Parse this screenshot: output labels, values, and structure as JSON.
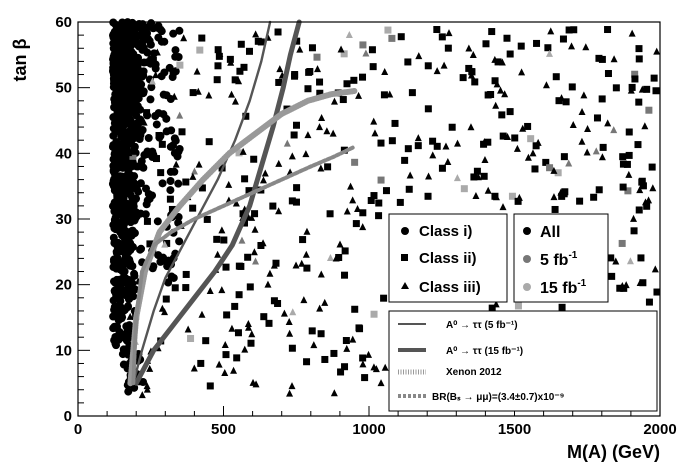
{
  "chart_data": {
    "type": "scatter",
    "title": "",
    "xlabel": "M(A) (GeV)",
    "ylabel": "tan β",
    "xlim": [
      0,
      2000
    ],
    "ylim": [
      0,
      60
    ],
    "xticks": [
      0,
      500,
      1000,
      1500,
      2000
    ],
    "yticks": [
      0,
      10,
      20,
      30,
      40,
      50,
      60
    ],
    "xtick_labels": [
      "0",
      "500",
      "1000",
      "1500",
      "2000"
    ],
    "ytick_labels": [
      "0",
      "10",
      "20",
      "30",
      "40",
      "50",
      "60"
    ],
    "grid": false,
    "legend_class": {
      "placement": "center-right",
      "entries": [
        {
          "marker": "circle",
          "label": "Class   i)"
        },
        {
          "marker": "square",
          "label": "Class  ii)"
        },
        {
          "marker": "triangle",
          "label": "Class iii)"
        }
      ]
    },
    "legend_luminosity": {
      "placement": "right",
      "entries": [
        {
          "color": "#000000",
          "label": "All"
        },
        {
          "color": "#777777",
          "label": "5 fb",
          "sup": "-1"
        },
        {
          "color": "#aaaaaa",
          "label": "15 fb",
          "sup": "-1"
        }
      ]
    },
    "legend_curves": {
      "placement": "lower-right",
      "entries": [
        {
          "style": "thin-solid",
          "label": "A⁰ → ττ (5 fb⁻¹)"
        },
        {
          "style": "thick-solid",
          "label": "A⁰ → ττ (15 fb⁻¹)"
        },
        {
          "style": "hatched",
          "label": "Xenon 2012"
        },
        {
          "style": "dotted",
          "label": "BR(Bₛ → μμ)=(3.4±0.7)x10⁻⁹"
        }
      ]
    },
    "series": [
      {
        "name": "A⁰ → ττ (5 fb⁻¹)",
        "style": "thin-solid",
        "color": "#555555",
        "x": [
          190,
          220,
          260,
          300,
          360,
          420,
          480,
          540,
          590,
          630,
          660
        ],
        "y": [
          5,
          10,
          16,
          21,
          26,
          31,
          36,
          42,
          48,
          54,
          60
        ]
      },
      {
        "name": "A⁰ → ττ (15 fb⁻¹)",
        "style": "thick-solid",
        "color": "#555555",
        "x": [
          200,
          260,
          330,
          400,
          470,
          530,
          590,
          630,
          670,
          705,
          730,
          760
        ],
        "y": [
          5,
          10,
          14,
          18,
          22,
          26,
          32,
          38,
          44,
          50,
          55,
          60
        ]
      },
      {
        "name": "Xenon 2012",
        "style": "hatched",
        "color": "#999999",
        "x": [
          180,
          200,
          230,
          280,
          350,
          430,
          520,
          610,
          700,
          790,
          870,
          950
        ],
        "y": [
          5,
          15,
          22,
          28,
          32,
          36,
          40,
          43,
          46,
          48,
          49,
          49.5
        ]
      },
      {
        "name": "BR(Bₛ → μμ)=(3.4±0.7)x10⁻⁹",
        "style": "dotted",
        "color": "#888888",
        "x": [
          190,
          200,
          220,
          260,
          320,
          400,
          500,
          600,
          700,
          800,
          880,
          950
        ],
        "y": [
          5,
          15,
          22,
          26,
          28,
          30,
          32,
          34,
          36,
          38,
          39.5,
          41
        ]
      }
    ],
    "scatter": {
      "dense_region": {
        "x": [
          120,
          330
        ],
        "y": [
          3,
          60
        ],
        "marker": "circle",
        "color": "#000000"
      },
      "total_points_approx": 1400,
      "square_points_approx": 350,
      "triangle_points_approx": 280,
      "circle_points_approx": 770,
      "highlight_fraction_5fb": 0.04,
      "highlight_fraction_15fb": 0.04
    }
  }
}
